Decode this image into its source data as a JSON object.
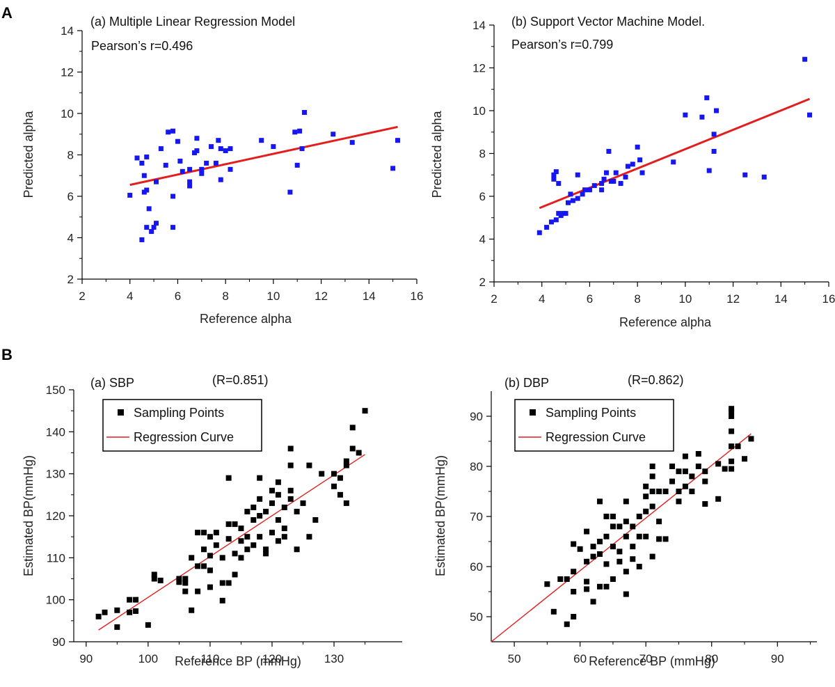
{
  "panel_labels": {
    "A": "A",
    "B": "B"
  },
  "colors": {
    "points_alpha": "#1616f0",
    "points_bp": "#000000",
    "regression": "#e21e1e",
    "axis": "#000000"
  },
  "chart_data": [
    {
      "id": "c1",
      "type": "scatter",
      "title": "(a) Multiple Linear Regression Model",
      "subtitle": "Pearson’s r=0.496",
      "xlabel": "Reference alpha",
      "ylabel": "Predicted alpha",
      "xlim": [
        2,
        16
      ],
      "ylim": [
        2,
        14
      ],
      "xticks": [
        2,
        4,
        6,
        8,
        10,
        12,
        14,
        16
      ],
      "yticks": [
        2,
        4,
        6,
        8,
        10,
        12,
        14
      ],
      "regression": {
        "x1": 4.0,
        "y1": 6.55,
        "x2": 15.2,
        "y2": 9.35
      },
      "points": [
        [
          4.0,
          6.05
        ],
        [
          4.3,
          7.85
        ],
        [
          4.5,
          3.9
        ],
        [
          4.5,
          7.6
        ],
        [
          4.6,
          7.0
        ],
        [
          4.6,
          6.2
        ],
        [
          4.7,
          6.3
        ],
        [
          4.7,
          7.9
        ],
        [
          4.7,
          4.5
        ],
        [
          4.8,
          5.4
        ],
        [
          4.9,
          4.3
        ],
        [
          5.0,
          4.5
        ],
        [
          5.1,
          4.7
        ],
        [
          5.1,
          6.7
        ],
        [
          5.3,
          8.3
        ],
        [
          5.5,
          7.5
        ],
        [
          5.6,
          9.1
        ],
        [
          5.8,
          9.15
        ],
        [
          5.8,
          4.5
        ],
        [
          5.8,
          6.0
        ],
        [
          6.0,
          8.65
        ],
        [
          6.1,
          7.7
        ],
        [
          6.2,
          7.2
        ],
        [
          6.5,
          6.5
        ],
        [
          6.5,
          6.7
        ],
        [
          6.5,
          7.3
        ],
        [
          6.7,
          8.1
        ],
        [
          6.8,
          8.2
        ],
        [
          6.8,
          8.8
        ],
        [
          7.0,
          7.1
        ],
        [
          7.0,
          7.3
        ],
        [
          7.2,
          7.6
        ],
        [
          7.4,
          8.4
        ],
        [
          7.6,
          7.6
        ],
        [
          7.7,
          8.7
        ],
        [
          7.8,
          8.3
        ],
        [
          7.8,
          6.8
        ],
        [
          8.0,
          8.2
        ],
        [
          8.2,
          8.3
        ],
        [
          8.2,
          7.3
        ],
        [
          9.5,
          8.7
        ],
        [
          10.0,
          8.4
        ],
        [
          10.7,
          6.2
        ],
        [
          10.9,
          9.1
        ],
        [
          11.0,
          7.5
        ],
        [
          11.1,
          9.15
        ],
        [
          11.2,
          8.3
        ],
        [
          11.3,
          10.05
        ],
        [
          12.5,
          9.0
        ],
        [
          13.3,
          8.6
        ],
        [
          15.0,
          7.35
        ],
        [
          15.2,
          8.7
        ]
      ]
    },
    {
      "id": "c2",
      "type": "scatter",
      "title": "(b) Support Vector Machine Model.",
      "subtitle": "Pearson’s r=0.799",
      "xlabel": "Reference alpha",
      "ylabel": "Predicted alpha",
      "xlim": [
        2,
        16
      ],
      "ylim": [
        2,
        14
      ],
      "xticks": [
        2,
        4,
        6,
        8,
        10,
        12,
        14,
        16
      ],
      "yticks": [
        2,
        4,
        6,
        8,
        10,
        12,
        14
      ],
      "regression": {
        "x1": 3.9,
        "y1": 5.45,
        "x2": 15.2,
        "y2": 10.55
      },
      "points": [
        [
          3.9,
          4.3
        ],
        [
          4.2,
          4.55
        ],
        [
          4.4,
          4.8
        ],
        [
          4.5,
          6.8
        ],
        [
          4.5,
          7.0
        ],
        [
          4.6,
          7.15
        ],
        [
          4.6,
          4.9
        ],
        [
          4.7,
          6.6
        ],
        [
          4.7,
          5.2
        ],
        [
          4.8,
          5.1
        ],
        [
          4.9,
          5.2
        ],
        [
          5.0,
          5.2
        ],
        [
          5.1,
          5.7
        ],
        [
          5.2,
          6.1
        ],
        [
          5.3,
          5.8
        ],
        [
          5.5,
          7.0
        ],
        [
          5.5,
          5.9
        ],
        [
          5.7,
          6.1
        ],
        [
          5.8,
          6.3
        ],
        [
          6.0,
          6.3
        ],
        [
          6.2,
          6.5
        ],
        [
          6.5,
          6.6
        ],
        [
          6.5,
          6.3
        ],
        [
          6.6,
          6.8
        ],
        [
          6.7,
          7.1
        ],
        [
          6.8,
          8.1
        ],
        [
          6.9,
          6.7
        ],
        [
          7.0,
          6.7
        ],
        [
          7.1,
          7.1
        ],
        [
          7.3,
          6.6
        ],
        [
          7.5,
          6.9
        ],
        [
          7.6,
          7.4
        ],
        [
          7.8,
          7.5
        ],
        [
          8.0,
          8.3
        ],
        [
          8.1,
          7.7
        ],
        [
          8.2,
          7.1
        ],
        [
          9.5,
          7.6
        ],
        [
          10.0,
          9.8
        ],
        [
          10.7,
          9.7
        ],
        [
          10.9,
          10.6
        ],
        [
          11.0,
          7.2
        ],
        [
          11.2,
          8.9
        ],
        [
          11.2,
          8.1
        ],
        [
          11.3,
          10.0
        ],
        [
          12.5,
          7.0
        ],
        [
          13.3,
          6.9
        ],
        [
          15.0,
          12.4
        ],
        [
          15.2,
          9.8
        ]
      ]
    },
    {
      "id": "c3",
      "type": "scatter",
      "title": "(a) SBP",
      "r_label": "(R=0.851)",
      "xlabel": "Reference BP (mmHg)",
      "ylabel": "Estimated BP(mmHg)",
      "xlim": [
        88,
        141
      ],
      "ylim": [
        90,
        150
      ],
      "xticks": [
        90,
        100,
        110,
        120,
        130
      ],
      "yticks": [
        90,
        100,
        110,
        120,
        130,
        140,
        150
      ],
      "legend": {
        "points": "Sampling Points",
        "line": "Regression Curve"
      },
      "regression": {
        "x1": 92,
        "y1": 92.8,
        "x2": 135,
        "y2": 134.6
      },
      "points": [
        [
          92,
          96
        ],
        [
          93,
          97
        ],
        [
          95,
          97.5
        ],
        [
          95,
          93.5
        ],
        [
          97,
          100
        ],
        [
          97,
          97
        ],
        [
          98,
          100
        ],
        [
          98,
          97.3
        ],
        [
          100,
          94
        ],
        [
          101,
          106
        ],
        [
          101,
          105
        ],
        [
          102,
          104.6
        ],
        [
          105,
          104.2
        ],
        [
          105,
          105
        ],
        [
          106,
          104
        ],
        [
          106,
          102
        ],
        [
          106,
          105
        ],
        [
          107,
          110
        ],
        [
          107,
          97.5
        ],
        [
          108,
          108
        ],
        [
          108,
          116
        ],
        [
          108,
          102
        ],
        [
          109,
          116
        ],
        [
          109,
          112
        ],
        [
          109,
          108
        ],
        [
          110,
          115
        ],
        [
          110,
          110.5
        ],
        [
          110,
          107
        ],
        [
          110,
          103
        ],
        [
          111,
          113
        ],
        [
          111,
          116
        ],
        [
          112,
          110
        ],
        [
          112,
          104
        ],
        [
          112,
          99.8
        ],
        [
          113,
          129
        ],
        [
          113,
          118
        ],
        [
          113,
          114.5
        ],
        [
          113,
          104
        ],
        [
          114,
          111
        ],
        [
          114,
          118
        ],
        [
          114,
          106
        ],
        [
          115,
          117
        ],
        [
          115,
          114
        ],
        [
          115,
          110
        ],
        [
          116,
          121
        ],
        [
          116,
          112
        ],
        [
          116,
          115
        ],
        [
          117,
          122
        ],
        [
          117,
          119
        ],
        [
          117,
          113
        ],
        [
          118,
          129
        ],
        [
          118,
          124
        ],
        [
          118,
          120
        ],
        [
          118,
          115
        ],
        [
          119,
          121
        ],
        [
          119,
          112
        ],
        [
          119,
          111
        ],
        [
          120,
          126
        ],
        [
          120,
          123
        ],
        [
          120,
          116
        ],
        [
          121,
          128
        ],
        [
          121,
          125
        ],
        [
          121,
          119
        ],
        [
          121,
          114
        ],
        [
          122,
          122
        ],
        [
          122,
          117
        ],
        [
          122,
          115
        ],
        [
          123,
          136
        ],
        [
          123,
          132
        ],
        [
          123,
          126
        ],
        [
          123,
          124
        ],
        [
          124,
          121
        ],
        [
          124,
          112
        ],
        [
          125,
          123
        ],
        [
          126,
          132
        ],
        [
          126,
          115
        ],
        [
          127,
          119
        ],
        [
          128,
          130
        ],
        [
          130,
          130
        ],
        [
          130,
          127
        ],
        [
          131,
          129
        ],
        [
          131,
          125
        ],
        [
          132,
          133
        ],
        [
          132,
          132
        ],
        [
          132,
          123
        ],
        [
          133,
          141
        ],
        [
          133,
          136
        ],
        [
          134,
          135
        ],
        [
          135,
          145
        ]
      ]
    },
    {
      "id": "c4",
      "type": "scatter",
      "title": "(b) DBP",
      "r_label": "(R=0.862)",
      "xlabel": "Reference BP (mmHg)",
      "ylabel": "Estimated BP(mmHg)",
      "xlim": [
        46.5,
        96
      ],
      "ylim": [
        45,
        95
      ],
      "xticks": [
        50,
        60,
        70,
        80,
        90
      ],
      "yticks": [
        50,
        60,
        70,
        80,
        90
      ],
      "legend": {
        "points": "Sampling Points",
        "line": "Regression Curve"
      },
      "regression": {
        "x1": 46.5,
        "y1": 45,
        "x2": 86,
        "y2": 86.5
      },
      "points": [
        [
          55,
          56.5
        ],
        [
          56,
          51
        ],
        [
          57,
          57.5
        ],
        [
          58,
          48.5
        ],
        [
          58,
          57.5
        ],
        [
          59,
          50
        ],
        [
          59,
          55
        ],
        [
          59,
          59
        ],
        [
          59,
          64.5
        ],
        [
          60,
          63.5
        ],
        [
          61,
          67
        ],
        [
          61,
          61
        ],
        [
          61,
          57
        ],
        [
          61,
          55.5
        ],
        [
          62,
          64
        ],
        [
          62,
          62
        ],
        [
          62,
          53
        ],
        [
          63,
          73
        ],
        [
          63,
          65
        ],
        [
          63,
          62.5
        ],
        [
          63,
          56
        ],
        [
          64,
          70
        ],
        [
          64,
          66
        ],
        [
          64,
          60.5
        ],
        [
          64,
          56
        ],
        [
          65,
          70
        ],
        [
          65,
          68
        ],
        [
          65,
          64
        ],
        [
          65,
          57.5
        ],
        [
          66,
          68
        ],
        [
          66,
          63
        ],
        [
          66,
          61
        ],
        [
          67,
          73
        ],
        [
          67,
          69
        ],
        [
          67,
          66
        ],
        [
          67,
          59
        ],
        [
          67,
          54.5
        ],
        [
          68,
          68
        ],
        [
          68,
          64
        ],
        [
          68,
          61.5
        ],
        [
          69,
          70
        ],
        [
          69,
          66
        ],
        [
          69,
          60
        ],
        [
          70,
          76
        ],
        [
          70,
          74
        ],
        [
          70,
          71
        ],
        [
          70,
          66
        ],
        [
          71,
          80
        ],
        [
          71,
          78
        ],
        [
          71,
          75
        ],
        [
          71,
          72
        ],
        [
          71,
          62
        ],
        [
          72,
          75
        ],
        [
          72,
          69
        ],
        [
          72,
          65.5
        ],
        [
          73,
          75
        ],
        [
          73,
          65.5
        ],
        [
          74,
          80
        ],
        [
          74,
          77
        ],
        [
          75,
          79
        ],
        [
          75,
          75
        ],
        [
          75,
          73
        ],
        [
          76,
          82
        ],
        [
          76,
          79
        ],
        [
          76,
          76
        ],
        [
          77,
          78
        ],
        [
          77,
          75
        ],
        [
          78,
          82.5
        ],
        [
          78,
          80
        ],
        [
          79,
          79
        ],
        [
          79,
          77
        ],
        [
          79,
          72.5
        ],
        [
          81,
          80.5
        ],
        [
          81,
          73.5
        ],
        [
          82,
          79.5
        ],
        [
          83,
          91.5
        ],
        [
          83,
          91
        ],
        [
          83,
          90
        ],
        [
          83,
          87
        ],
        [
          83,
          84
        ],
        [
          83,
          81
        ],
        [
          83,
          79.5
        ],
        [
          84,
          84
        ],
        [
          85,
          81.5
        ],
        [
          86,
          85.5
        ]
      ]
    }
  ]
}
